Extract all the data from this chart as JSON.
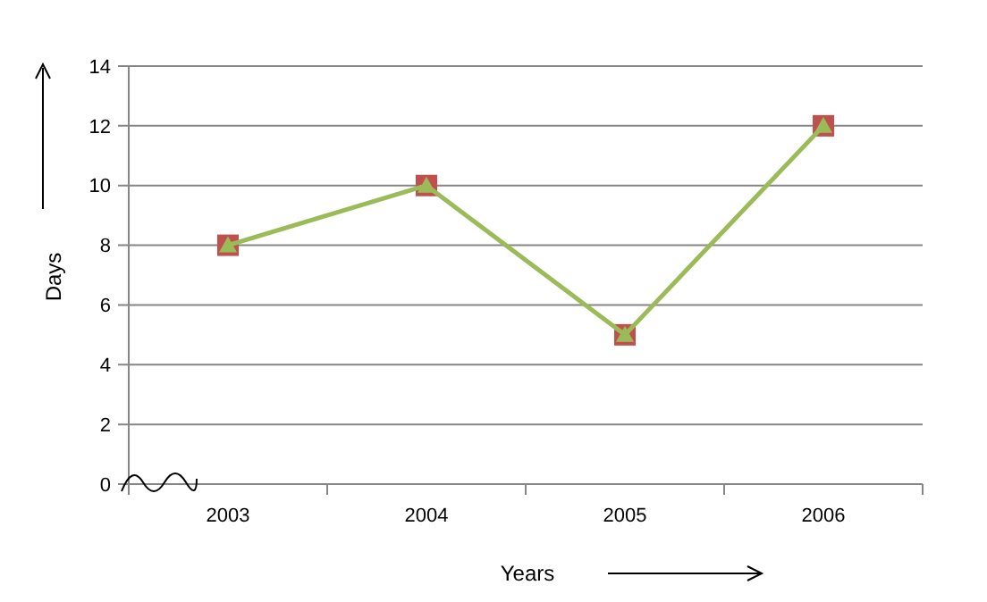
{
  "chart_data": {
    "type": "line",
    "xlabel": "Years",
    "ylabel": "Days",
    "categories": [
      "2003",
      "2004",
      "2005",
      "2006"
    ],
    "series": [
      {
        "type": "scatter",
        "color": "#c0504d",
        "marker": "square",
        "values": [
          8,
          10,
          5,
          12
        ]
      },
      {
        "type": "line",
        "color": "#9bbb59",
        "marker": "triangle",
        "values": [
          8,
          10,
          5,
          12
        ]
      }
    ],
    "ylim": [
      0,
      14
    ],
    "yticks": [
      0,
      2,
      4,
      6,
      8,
      10,
      12,
      14
    ],
    "grid": "y"
  }
}
